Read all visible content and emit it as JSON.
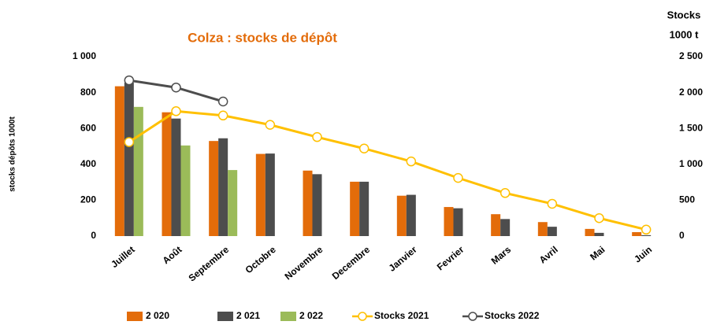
{
  "chart_data": {
    "type": "bar_line",
    "title": "Colza : stocks de dépôt",
    "ylabel": "stocks dépôts 1000t",
    "y2label": [
      "Stocks",
      "1000 t"
    ],
    "categories": [
      "Juillet",
      "Août",
      "Septembre",
      "Octobre",
      "Novembre",
      "Decembre",
      "Janvier",
      "Fevrier",
      "Mars",
      "Avril",
      "Mai",
      "Juin"
    ],
    "series": [
      {
        "name": "2 020",
        "type": "bar",
        "color": "#e36c0a",
        "values": [
          835,
          690,
          530,
          458,
          365,
          303,
          225,
          162,
          122,
          78,
          40,
          22
        ]
      },
      {
        "name": "2 021",
        "type": "bar",
        "color": "#4d4d4d",
        "values": [
          855,
          655,
          545,
          460,
          345,
          303,
          230,
          155,
          95,
          52,
          18,
          5
        ]
      },
      {
        "name": "2 022",
        "type": "bar",
        "color": "#9bbb59",
        "values": [
          720,
          505,
          368,
          null,
          null,
          null,
          null,
          null,
          null,
          null,
          null,
          null
        ]
      },
      {
        "name": "Stocks 2021",
        "type": "line",
        "axis": "y2",
        "color": "#ffc000",
        "values": [
          1310,
          1740,
          1680,
          1550,
          1380,
          1220,
          1040,
          810,
          600,
          450,
          250,
          90
        ]
      },
      {
        "name": "Stocks 2022",
        "type": "line",
        "axis": "y2",
        "color": "#4d4d4d",
        "values": [
          2170,
          2070,
          1875,
          null,
          null,
          null,
          null,
          null,
          null,
          null,
          null,
          null
        ]
      }
    ],
    "ylim": [
      0,
      1000
    ],
    "yticks": [
      0,
      200,
      400,
      600,
      800,
      {
        "value": 1000,
        "label": "1 000"
      }
    ],
    "y2lim": [
      0,
      2500
    ],
    "y2ticks": [
      0,
      500,
      {
        "value": 1000,
        "label": "1 000"
      },
      {
        "value": 1500,
        "label": "1 500"
      },
      {
        "value": 2000,
        "label": "2 000"
      },
      {
        "value": 2500,
        "label": "2 500"
      }
    ],
    "legend": "bottom"
  }
}
